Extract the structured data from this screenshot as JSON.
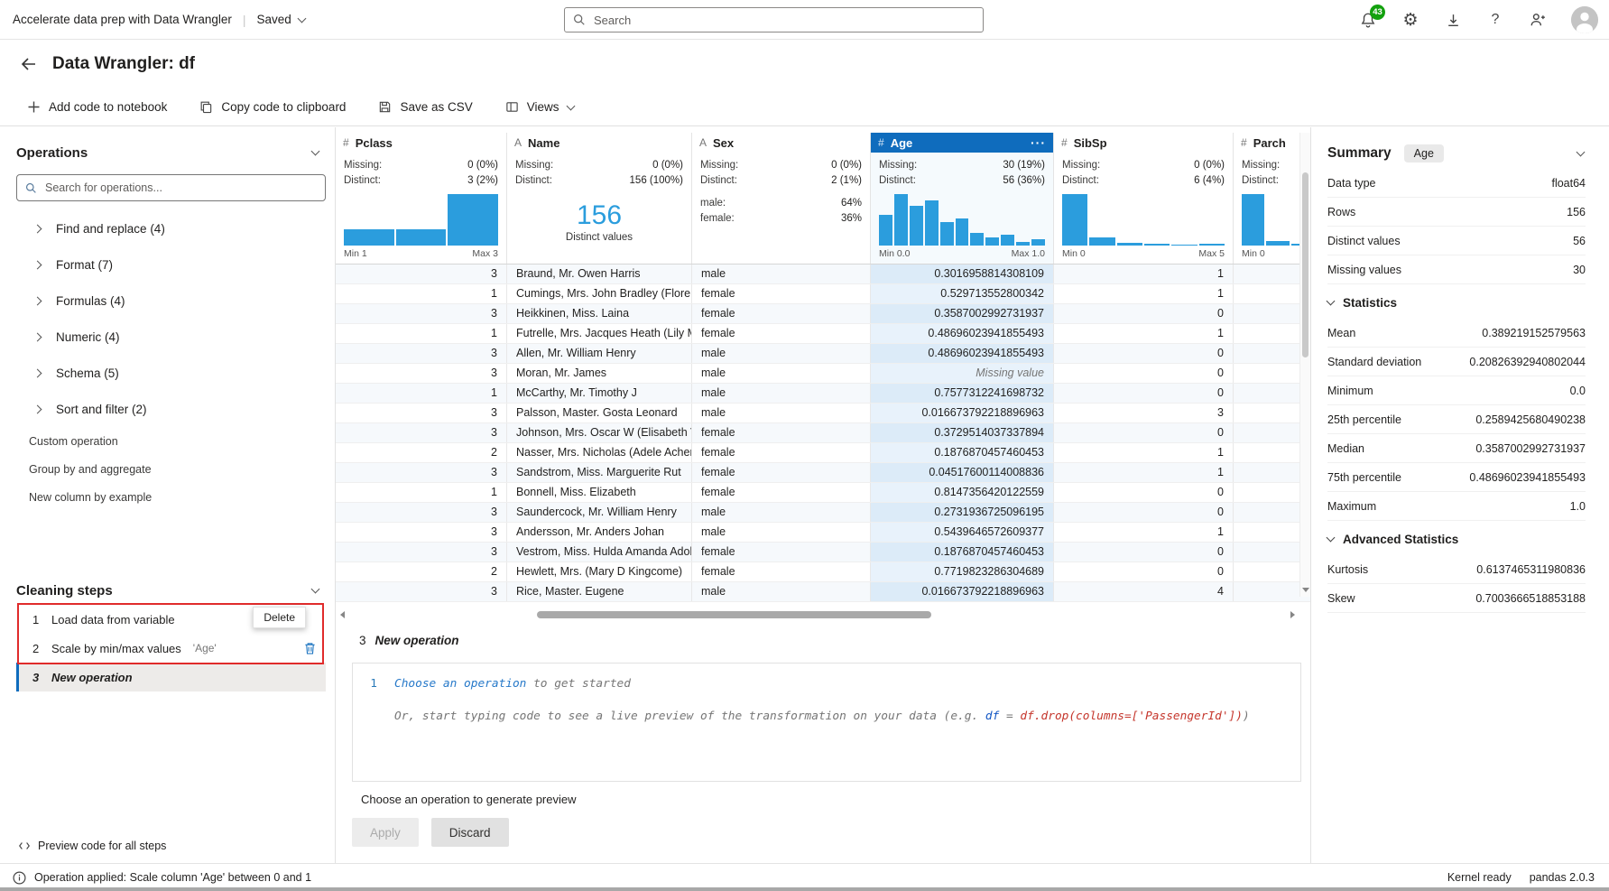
{
  "colors": {
    "accent": "#0f6cbd",
    "chart_bar": "#2b9ddd",
    "highlight_red": "#e02b2b",
    "badge_green": "#13a10e"
  },
  "topbar": {
    "app_title": "Accelerate data prep with Data Wrangler",
    "saved_label": "Saved",
    "search_placeholder": "Search",
    "notification_count": "43",
    "help_glyph": "?",
    "gear_glyph": "⚙"
  },
  "header": {
    "title": "Data Wrangler: df"
  },
  "toolbar": {
    "add_code": "Add code to notebook",
    "copy_code": "Copy code to clipboard",
    "save_csv": "Save as CSV",
    "views": "Views"
  },
  "operations": {
    "title": "Operations",
    "search_placeholder": "Search for operations...",
    "groups": [
      "Find and replace (4)",
      "Format (7)",
      "Formulas (4)",
      "Numeric (4)",
      "Schema (5)",
      "Sort and filter (2)"
    ],
    "links": [
      "Custom operation",
      "Group by and aggregate",
      "New column by example"
    ]
  },
  "cleaning_steps": {
    "title": "Cleaning steps",
    "steps": [
      {
        "num": "1",
        "label": "Load data from variable",
        "detail": ""
      },
      {
        "num": "2",
        "label": "Scale by min/max values",
        "detail": "'Age'"
      },
      {
        "num": "3",
        "label": "New operation",
        "detail": ""
      }
    ],
    "delete_tooltip": "Delete",
    "preview_code": "Preview code for all steps"
  },
  "grid": {
    "missing_label": "Missing:",
    "distinct_label": "Distinct:",
    "missing_text": "Missing value",
    "more_glyph": "···",
    "columns": [
      {
        "key": "pclass",
        "icon": "#",
        "name": "Pclass",
        "variant": "hist",
        "align": "right",
        "missing": "0 (0%)",
        "distinct": "3 (2%)",
        "min": "Min 1",
        "max": "Max 3",
        "hist": [
          32,
          32,
          100
        ]
      },
      {
        "key": "name",
        "icon": "A",
        "name": "Name",
        "variant": "bignum",
        "align": "left",
        "missing": "0 (0%)",
        "distinct": "156 (100%)",
        "big": "156",
        "big_caption": "Distinct values"
      },
      {
        "key": "sex",
        "icon": "A",
        "name": "Sex",
        "variant": "cats",
        "align": "left",
        "missing": "0 (0%)",
        "distinct": "2 (1%)",
        "cats": [
          {
            "label": "male:",
            "value": "64%"
          },
          {
            "label": "female:",
            "value": "36%"
          }
        ]
      },
      {
        "key": "age",
        "icon": "#",
        "name": "Age",
        "variant": "hist",
        "align": "right",
        "selected": true,
        "missing": "30 (19%)",
        "distinct": "56 (36%)",
        "min": "Min 0.0",
        "max": "Max 1.0",
        "hist": [
          60,
          100,
          78,
          88,
          46,
          52,
          24,
          16,
          21,
          7,
          13
        ]
      },
      {
        "key": "sibsp",
        "icon": "#",
        "name": "SibSp",
        "variant": "hist",
        "align": "right",
        "missing": "0 (0%)",
        "distinct": "6 (4%)",
        "min": "Min 0",
        "max": "Max 5",
        "hist": [
          100,
          15,
          5,
          3,
          2,
          4
        ]
      },
      {
        "key": "parch",
        "icon": "#",
        "name": "Parch",
        "variant": "hist",
        "align": "right",
        "clipped": true,
        "missing": "",
        "distinct": "",
        "min": "Min 0",
        "max": "",
        "hist": [
          100,
          9,
          4,
          2,
          1,
          1
        ]
      }
    ],
    "rows": [
      {
        "pclass": "3",
        "name": "Braund, Mr. Owen Harris",
        "sex": "male",
        "age": "0.3016958814308109",
        "sibsp": "1",
        "parch": ""
      },
      {
        "pclass": "1",
        "name": "Cumings, Mrs. John Bradley (Florenc",
        "sex": "female",
        "age": "0.529713552800342",
        "sibsp": "1",
        "parch": ""
      },
      {
        "pclass": "3",
        "name": "Heikkinen, Miss. Laina",
        "sex": "female",
        "age": "0.3587002992731937",
        "sibsp": "0",
        "parch": ""
      },
      {
        "pclass": "1",
        "name": "Futrelle, Mrs. Jacques Heath (Lily Ma",
        "sex": "female",
        "age": "0.48696023941855493",
        "sibsp": "1",
        "parch": ""
      },
      {
        "pclass": "3",
        "name": "Allen, Mr. William Henry",
        "sex": "male",
        "age": "0.48696023941855493",
        "sibsp": "0",
        "parch": ""
      },
      {
        "pclass": "3",
        "name": "Moran, Mr. James",
        "sex": "male",
        "age": "Missing value",
        "sibsp": "0",
        "parch": ""
      },
      {
        "pclass": "1",
        "name": "McCarthy, Mr. Timothy J",
        "sex": "male",
        "age": "0.7577312241698732",
        "sibsp": "0",
        "parch": ""
      },
      {
        "pclass": "3",
        "name": "Palsson, Master. Gosta Leonard",
        "sex": "male",
        "age": "0.016673792218896963",
        "sibsp": "3",
        "parch": ""
      },
      {
        "pclass": "3",
        "name": "Johnson, Mrs. Oscar W (Elisabeth Vil",
        "sex": "female",
        "age": "0.3729514037337894",
        "sibsp": "0",
        "parch": ""
      },
      {
        "pclass": "2",
        "name": "Nasser, Mrs. Nicholas (Adele Achem",
        "sex": "female",
        "age": "0.1876870457460453",
        "sibsp": "1",
        "parch": ""
      },
      {
        "pclass": "3",
        "name": "Sandstrom, Miss. Marguerite Rut",
        "sex": "female",
        "age": "0.04517600114008836",
        "sibsp": "1",
        "parch": ""
      },
      {
        "pclass": "1",
        "name": "Bonnell, Miss. Elizabeth",
        "sex": "female",
        "age": "0.8147356420122559",
        "sibsp": "0",
        "parch": ""
      },
      {
        "pclass": "3",
        "name": "Saundercock, Mr. William Henry",
        "sex": "male",
        "age": "0.2731936725096195",
        "sibsp": "0",
        "parch": ""
      },
      {
        "pclass": "3",
        "name": "Andersson, Mr. Anders Johan",
        "sex": "male",
        "age": "0.5439646572609377",
        "sibsp": "1",
        "parch": ""
      },
      {
        "pclass": "3",
        "name": "Vestrom, Miss. Hulda Amanda Adolf",
        "sex": "female",
        "age": "0.1876870457460453",
        "sibsp": "0",
        "parch": ""
      },
      {
        "pclass": "2",
        "name": "Hewlett, Mrs. (Mary D Kingcome)",
        "sex": "female",
        "age": "0.7719823286304689",
        "sibsp": "0",
        "parch": ""
      },
      {
        "pclass": "3",
        "name": "Rice, Master. Eugene",
        "sex": "male",
        "age": "0.016673792218896963",
        "sibsp": "4",
        "parch": ""
      }
    ]
  },
  "summary": {
    "title": "Summary",
    "chip": "Age",
    "basic": [
      {
        "label": "Data type",
        "value": "float64"
      },
      {
        "label": "Rows",
        "value": "156"
      },
      {
        "label": "Distinct values",
        "value": "56"
      },
      {
        "label": "Missing values",
        "value": "30"
      }
    ],
    "statistics_title": "Statistics",
    "statistics": [
      {
        "label": "Mean",
        "value": "0.389219152579563"
      },
      {
        "label": "Standard deviation",
        "value": "0.20826392940802044"
      },
      {
        "label": "Minimum",
        "value": "0.0"
      },
      {
        "label": "25th percentile",
        "value": "0.2589425680490238"
      },
      {
        "label": "Median",
        "value": "0.3587002992731937"
      },
      {
        "label": "75th percentile",
        "value": "0.48696023941855493"
      },
      {
        "label": "Maximum",
        "value": "1.0"
      }
    ],
    "advanced_title": "Advanced Statistics",
    "advanced": [
      {
        "label": "Kurtosis",
        "value": "0.6137465311980836"
      },
      {
        "label": "Skew",
        "value": "0.7003666518853188"
      }
    ]
  },
  "code_panel": {
    "step_num": "3",
    "step_label": "New operation",
    "line_number": "1",
    "link_text": "Choose an operation",
    "link_suffix": " to get started",
    "hint_prefix": "Or, start typing code to see a live preview of the transformation on your data (e.g. ",
    "hint_code_segments": [
      {
        "t": "df",
        "c": "blue"
      },
      {
        "t": " = ",
        "c": "plain"
      },
      {
        "t": "df.drop(columns=['PassengerId'])",
        "c": "red"
      }
    ],
    "hint_suffix": ")",
    "preview_hint": "Choose an operation to generate preview",
    "apply_label": "Apply",
    "discard_label": "Discard"
  },
  "status_bar": {
    "message": "Operation applied: Scale column 'Age' between 0 and 1",
    "kernel": "Kernel ready",
    "pandas": "pandas 2.0.3"
  }
}
